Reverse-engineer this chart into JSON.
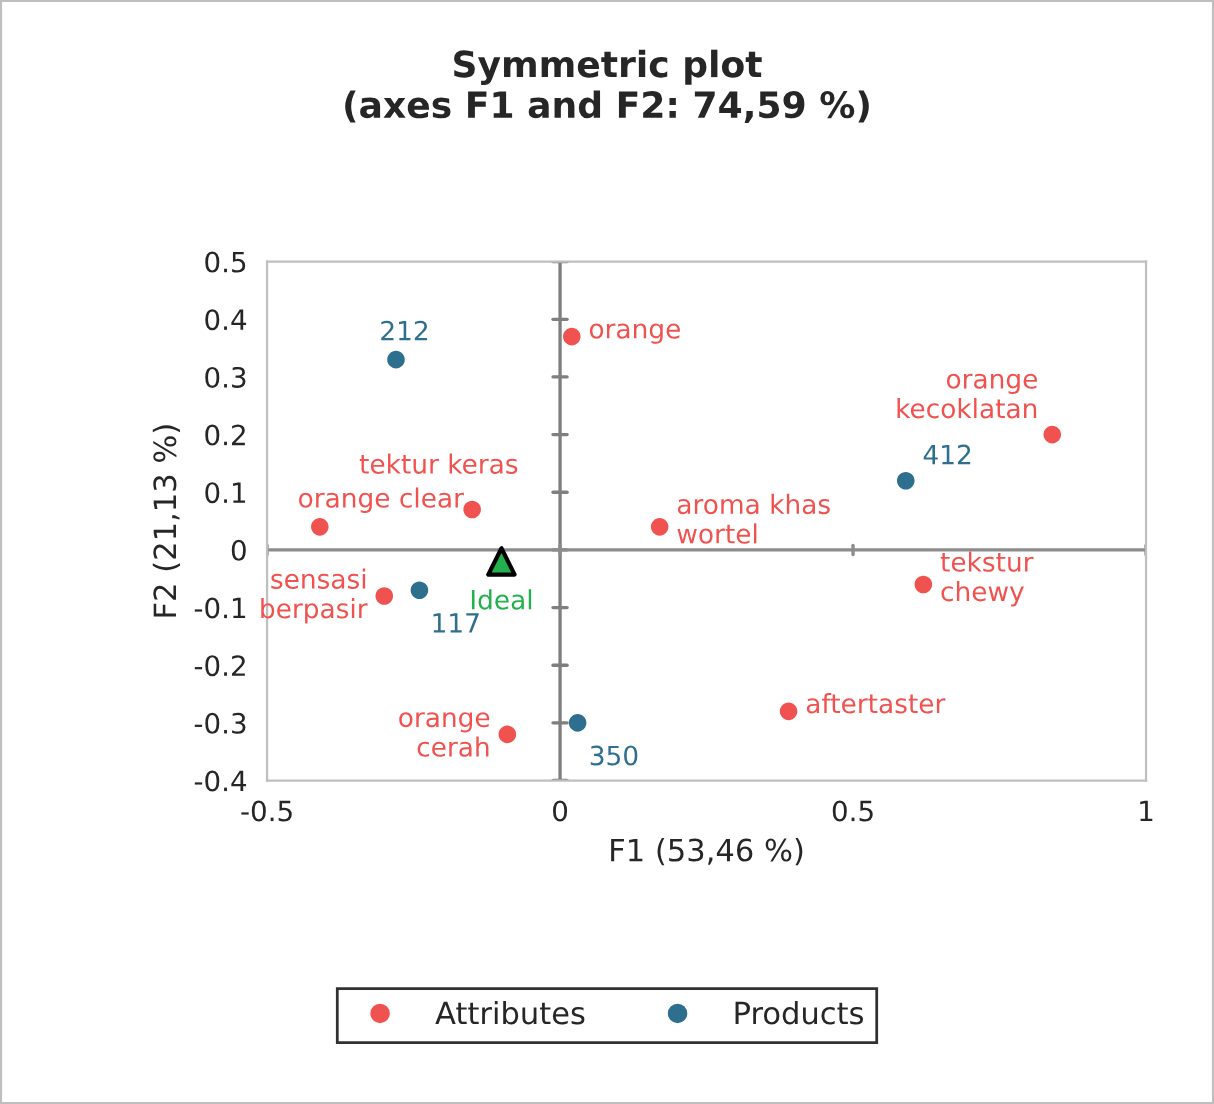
{
  "chart_data": {
    "type": "scatter",
    "title": "Symmetric plot\n(axes F1 and F2: 74,59 %)",
    "xlabel": "F1 (53,46 %)",
    "ylabel": "F2 (21,13 %)",
    "xlim": [
      -0.5,
      1
    ],
    "ylim": [
      -0.4,
      0.5
    ],
    "xticks": [
      -0.5,
      0,
      0.5,
      1
    ],
    "yticks": [
      -0.4,
      -0.3,
      -0.2,
      -0.1,
      0,
      0.1,
      0.2,
      0.3,
      0.4,
      0.5
    ],
    "grid": false,
    "legend": "bottom",
    "marker": "circle",
    "ref_lines": [
      {
        "axis": "x",
        "value": 0,
        "color": "#7f7f7f"
      },
      {
        "axis": "y",
        "value": 0,
        "color": "#8c8c8c"
      }
    ],
    "series": [
      {
        "name": "Attributes",
        "color": "#f0524f",
        "x": [
          0.02,
          -0.41,
          -0.15,
          -0.3,
          -0.09,
          0.17,
          0.84,
          0.62,
          0.39
        ],
        "values": [
          0.37,
          0.04,
          0.07,
          -0.08,
          -0.32,
          0.04,
          0.2,
          -0.06,
          -0.28
        ]
      },
      {
        "name": "Products",
        "color": "#2e6e8e",
        "x": [
          -0.28,
          -0.24,
          0.03,
          0.59
        ],
        "values": [
          0.33,
          -0.07,
          -0.3,
          0.12
        ]
      },
      {
        "color": "#22b14c",
        "marker": "triangle",
        "x": [
          -0.1
        ],
        "values": [
          -0.02
        ]
      }
    ],
    "annotations": [
      {
        "text": "orange",
        "x": 0.02,
        "y": 0.37
      },
      {
        "text": "orange clear",
        "x": -0.41,
        "y": 0.04
      },
      {
        "text": "tektur keras",
        "x": -0.15,
        "y": 0.07
      },
      {
        "text": "sensasi\nberpasir",
        "x": -0.3,
        "y": -0.08
      },
      {
        "text": "orange\ncerah",
        "x": -0.09,
        "y": -0.32
      },
      {
        "text": "aroma khas\nwortel",
        "x": 0.17,
        "y": 0.04
      },
      {
        "text": "orange\nkecoklatan",
        "x": 0.84,
        "y": 0.2
      },
      {
        "text": "tekstur\nchewy",
        "x": 0.62,
        "y": -0.06
      },
      {
        "text": "aftertaster",
        "x": 0.39,
        "y": -0.28
      },
      {
        "text": "212",
        "x": -0.28,
        "y": 0.33
      },
      {
        "text": "117",
        "x": -0.24,
        "y": -0.07
      },
      {
        "text": "350",
        "x": 0.03,
        "y": -0.3
      },
      {
        "text": "412",
        "x": 0.59,
        "y": 0.12
      },
      {
        "text": "Ideal",
        "x": -0.1,
        "y": -0.02
      }
    ]
  }
}
